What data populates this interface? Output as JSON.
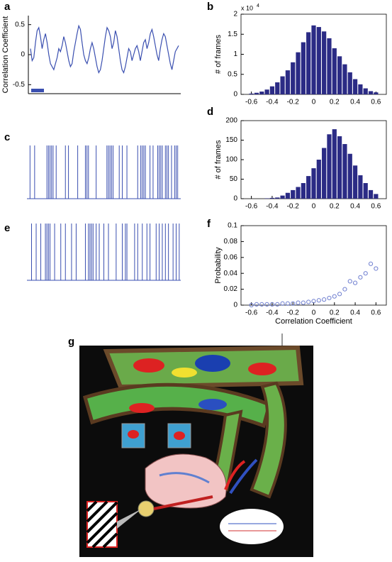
{
  "chart_data": [
    {
      "type": "line",
      "panel_label": "a",
      "y_label": "Correlation Coefficient",
      "color": "#3a4fb0",
      "values": [
        0.1,
        -0.1,
        -0.05,
        0.2,
        0.4,
        0.45,
        0.3,
        0.1,
        0.25,
        0.35,
        0.2,
        0,
        -0.15,
        -0.2,
        -0.25,
        -0.15,
        -0.05,
        0.1,
        0.05,
        0.15,
        0.3,
        0.2,
        0.05,
        -0.1,
        -0.2,
        -0.15,
        0.05,
        0.2,
        0.35,
        0.48,
        0.42,
        0.2,
        0,
        -0.1,
        -0.15,
        -0.05,
        0.1,
        0.2,
        0.1,
        -0.05,
        -0.2,
        -0.3,
        -0.25,
        -0.1,
        0.1,
        0.3,
        0.45,
        0.4,
        0.3,
        0.1,
        0.2,
        0.4,
        0.3,
        0.1,
        -0.1,
        -0.25,
        -0.3,
        -0.2,
        -0.05,
        0.1,
        0.05,
        -0.1,
        0,
        0.1,
        0.15,
        0.05,
        -0.1,
        0.05,
        0.2,
        0.25,
        0.1,
        0.2,
        0.35,
        0.42,
        0.3,
        0.15,
        0,
        -0.1,
        0.1,
        0.25,
        0.35,
        0.3,
        0.15,
        0,
        -0.15,
        -0.25,
        -0.1,
        0.05,
        0.1,
        0.15
      ],
      "ylim": [
        -0.65,
        0.65
      ],
      "yticks": [
        -0.5,
        0,
        0.5
      ]
    },
    {
      "type": "bar",
      "panel_label": "b",
      "y_label": "# of frames",
      "y_multiplier": "x 10",
      "y_multiplier_exponent": "4",
      "color": "#2b2b85",
      "x": [
        -0.6,
        -0.55,
        -0.5,
        -0.45,
        -0.4,
        -0.35,
        -0.3,
        -0.25,
        -0.2,
        -0.15,
        -0.1,
        -0.05,
        0,
        0.05,
        0.1,
        0.15,
        0.2,
        0.25,
        0.3,
        0.35,
        0.4,
        0.45,
        0.5,
        0.55,
        0.6
      ],
      "values": [
        0.02,
        0.04,
        0.07,
        0.12,
        0.2,
        0.3,
        0.45,
        0.6,
        0.8,
        1.05,
        1.3,
        1.55,
        1.72,
        1.68,
        1.57,
        1.4,
        1.15,
        0.95,
        0.75,
        0.55,
        0.38,
        0.25,
        0.15,
        0.08,
        0.05
      ],
      "xlim": [
        -0.7,
        0.7
      ],
      "ylim": [
        0,
        2
      ],
      "xticks": [
        -0.6,
        -0.4,
        -0.2,
        0,
        0.2,
        0.4,
        0.6
      ],
      "yticks": [
        0,
        0.5,
        1,
        1.5,
        2
      ]
    },
    {
      "type": "event",
      "panel_label": "c",
      "color": "#3a4fb0",
      "x": [
        2,
        5,
        13,
        14,
        15,
        16,
        17,
        19,
        25,
        27,
        33,
        38,
        39,
        40,
        45,
        52,
        53,
        54,
        55,
        56,
        60,
        62,
        65,
        72,
        74,
        75,
        76,
        77,
        80,
        82,
        85,
        86,
        87,
        88,
        90,
        91,
        92,
        94,
        96,
        97,
        98
      ],
      "xlim": [
        0,
        100
      ]
    },
    {
      "type": "bar",
      "panel_label": "d",
      "y_label": "# of frames",
      "color": "#2b2b85",
      "x": [
        -0.6,
        -0.55,
        -0.5,
        -0.45,
        -0.4,
        -0.35,
        -0.3,
        -0.25,
        -0.2,
        -0.15,
        -0.1,
        -0.05,
        0,
        0.05,
        0.1,
        0.15,
        0.2,
        0.25,
        0.3,
        0.35,
        0.4,
        0.45,
        0.5,
        0.55,
        0.6
      ],
      "values": [
        0,
        0,
        0,
        1,
        2,
        3,
        8,
        15,
        22,
        30,
        40,
        58,
        78,
        100,
        130,
        165,
        178,
        160,
        140,
        115,
        85,
        60,
        40,
        22,
        12
      ],
      "xlim": [
        -0.7,
        0.7
      ],
      "ylim": [
        0,
        200
      ],
      "xticks": [
        -0.6,
        -0.4,
        -0.2,
        0,
        0.2,
        0.4,
        0.6
      ],
      "yticks": [
        0,
        50,
        100,
        150,
        200
      ]
    },
    {
      "type": "event",
      "panel_label": "e",
      "color": "#3a4fb0",
      "x": [
        3,
        6,
        9,
        12,
        13,
        14,
        15,
        18,
        22,
        25,
        29,
        32,
        38,
        40,
        41,
        42,
        43,
        45,
        47,
        50,
        53,
        58,
        62,
        64,
        65,
        70,
        72,
        75,
        78,
        80,
        84,
        86,
        88,
        90,
        92,
        95,
        97,
        99
      ],
      "xlim": [
        0,
        100
      ]
    },
    {
      "type": "scatter",
      "panel_label": "f",
      "y_label": "Probability",
      "x_label": "Correlation Coefficient",
      "color": "#6f7fd0",
      "x": [
        -0.6,
        -0.55,
        -0.5,
        -0.45,
        -0.4,
        -0.35,
        -0.3,
        -0.25,
        -0.2,
        -0.15,
        -0.1,
        -0.05,
        0,
        0.05,
        0.1,
        0.15,
        0.2,
        0.25,
        0.3,
        0.35,
        0.4,
        0.45,
        0.5,
        0.55,
        0.6
      ],
      "values": [
        0,
        0.001,
        0.001,
        0.001,
        0.001,
        0.001,
        0.002,
        0.002,
        0.002,
        0.003,
        0.003,
        0.004,
        0.005,
        0.006,
        0.007,
        0.009,
        0.011,
        0.014,
        0.02,
        0.03,
        0.028,
        0.035,
        0.04,
        0.052,
        0.046
      ],
      "xlim": [
        -0.7,
        0.7
      ],
      "ylim": [
        0,
        0.1
      ],
      "xticks": [
        -0.6,
        -0.4,
        -0.2,
        0,
        0.2,
        0.4,
        0.6
      ],
      "yticks": [
        0,
        0.02,
        0.04,
        0.06,
        0.08,
        0.1
      ]
    }
  ],
  "illustration": {
    "panel_label": "g"
  }
}
